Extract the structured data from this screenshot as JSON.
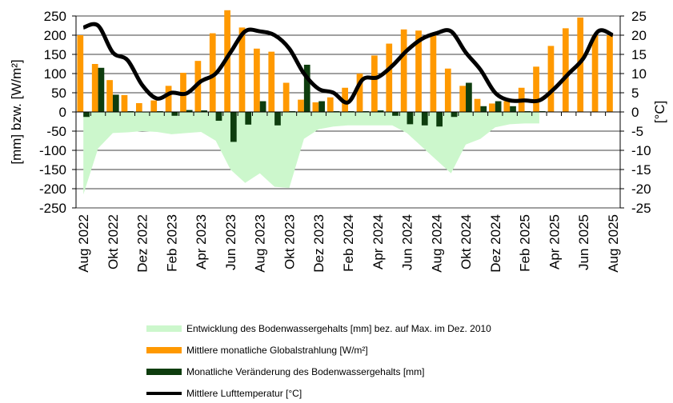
{
  "chart_data": {
    "type": "bar",
    "title": "",
    "xlabel": "",
    "ylabel": "[mm] bzw. [W/m²]",
    "y2label": "[°C]",
    "ylim": [
      -250,
      250
    ],
    "y2lim": [
      -25,
      25
    ],
    "yticks": [
      250,
      200,
      150,
      100,
      50,
      0,
      -50,
      -100,
      -150,
      -200,
      -250
    ],
    "y2ticks": [
      25,
      20,
      15,
      10,
      5,
      0,
      -5,
      -10,
      -15,
      -20,
      -25
    ],
    "grid": true,
    "legend_position": "bottom",
    "x": [
      "Aug 2022",
      "Sep 2022",
      "Okt 2022",
      "Nov 2022",
      "Dez 2022",
      "Jan 2023",
      "Feb 2023",
      "Mrz 2023",
      "Apr 2023",
      "Mai 2023",
      "Jun 2023",
      "Jul 2023",
      "Aug 2023",
      "Sep 2023",
      "Okt 2023",
      "Nov 2023",
      "Dez 2023",
      "Jan 2024",
      "Feb 2024",
      "Mrz 2024",
      "Apr 2024",
      "Mai 2024",
      "Jun 2024",
      "Jul 2024",
      "Aug 2024",
      "Sep 2024",
      "Okt 2024",
      "Nov 2024",
      "Dez 2024",
      "Jan 2025",
      "Feb 2025",
      "Mrz 2025",
      "Apr 2025",
      "Mai 2025",
      "Jun 2025",
      "Jul 2025",
      "Aug 2025"
    ],
    "x_tick_labels": [
      "Aug 2022",
      "Okt 2022",
      "Dez 2022",
      "Feb 2023",
      "Apr 2023",
      "Jun 2023",
      "Aug 2023",
      "Okt 2023",
      "Dez 2023",
      "Feb 2024",
      "Apr 2024",
      "Jun 2024",
      "Aug 2024",
      "Okt 2024",
      "Dez 2024",
      "Feb 2025",
      "Apr 2025",
      "Jun 2025",
      "Aug 2025"
    ],
    "series": [
      {
        "name": "Entwicklung des Bodenwassergehalts [mm] bez. auf Max. im Dez. 2010",
        "type": "area",
        "axis": "left",
        "color": "#ccf7cc",
        "values": [
          -215,
          -95,
          -55,
          -53,
          -50,
          -52,
          -58,
          -55,
          -52,
          -75,
          -150,
          -185,
          -160,
          -195,
          -198,
          -70,
          -45,
          -38,
          -35,
          -35,
          -35,
          -35,
          -55,
          -90,
          -125,
          -160,
          -85,
          -70,
          -40,
          -32,
          -30,
          -30,
          null,
          null,
          null,
          null,
          null
        ]
      },
      {
        "name": "Mittlere monatliche Globalstrahlung [W/m²]",
        "type": "bar",
        "axis": "left",
        "color": "#ff9900",
        "values": [
          200,
          125,
          83,
          44,
          23,
          30,
          68,
          102,
          133,
          205,
          265,
          220,
          165,
          157,
          76,
          32,
          25,
          38,
          63,
          100,
          147,
          178,
          215,
          212,
          200,
          113,
          68,
          34,
          22,
          28,
          63,
          118,
          172,
          218,
          246,
          200,
          200
        ]
      },
      {
        "name": "Monatliche Veränderung des Bodenwassergehalts [mm]",
        "type": "bar",
        "axis": "left",
        "color": "#0e3d0e",
        "values": [
          -13,
          115,
          45,
          2,
          0,
          2,
          -10,
          5,
          4,
          -23,
          -78,
          -33,
          28,
          -35,
          2,
          123,
          28,
          2,
          2,
          2,
          4,
          -10,
          -32,
          -35,
          -38,
          -13,
          76,
          15,
          28,
          15,
          2,
          2,
          null,
          null,
          null,
          null,
          null
        ]
      },
      {
        "name": "Mittlere Lufttemperatur [°C]",
        "type": "line",
        "axis": "right",
        "color": "#000000",
        "values": [
          22,
          22.5,
          15.5,
          13.5,
          7,
          3.5,
          5,
          4.8,
          8,
          10,
          15.5,
          21,
          21,
          20,
          16.5,
          10,
          6,
          5,
          2.5,
          8.5,
          9,
          12,
          16,
          19,
          20.5,
          21,
          15.5,
          11,
          5,
          3,
          3,
          3,
          6,
          10,
          14,
          21,
          20
        ]
      }
    ]
  }
}
